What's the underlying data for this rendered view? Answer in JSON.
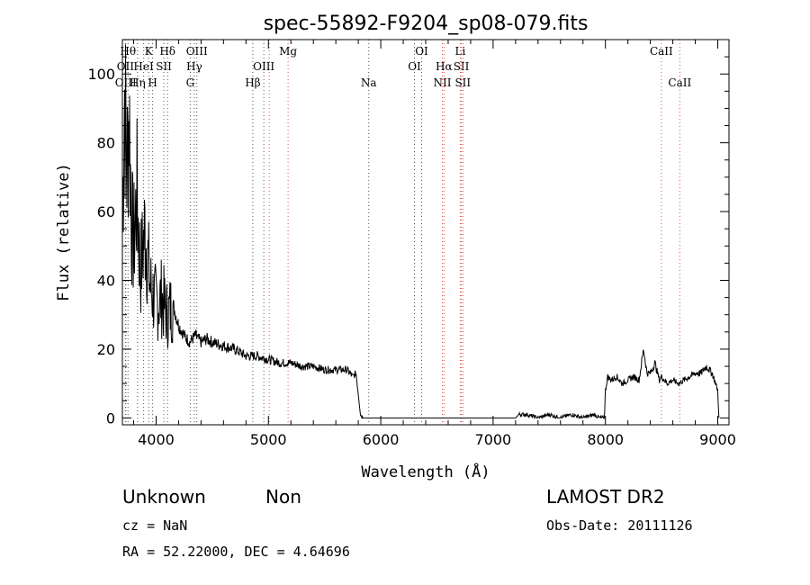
{
  "chart_data": {
    "type": "line",
    "title": "spec-55892-F9204_sp08-079.fits",
    "xlabel": "Wavelength (Å)",
    "ylabel": "Flux (relative)",
    "xlim": [
      3700,
      9100
    ],
    "ylim": [
      -2,
      110
    ],
    "xticks": [
      4000,
      5000,
      6000,
      7000,
      8000,
      9000
    ],
    "yticks": [
      0,
      20,
      40,
      60,
      80,
      100
    ],
    "grid": false,
    "series": [
      {
        "color": "#000000",
        "x": [
          3700,
          3720,
          3740,
          3760,
          3780,
          3800,
          3830,
          3860,
          3900,
          3950,
          4000,
          4050,
          4100,
          4150,
          4200,
          4250,
          4300,
          4350,
          4400,
          4450,
          4500,
          4600,
          4700,
          4800,
          4900,
          5000,
          5100,
          5200,
          5300,
          5400,
          5500,
          5600,
          5700,
          5750,
          5780,
          5800,
          5820,
          5840,
          6000,
          6500,
          7000,
          7200,
          7230,
          7300,
          7400,
          7500,
          7600,
          7700,
          7800,
          7900,
          7950,
          7990,
          8000,
          8020,
          8050,
          8100,
          8150,
          8200,
          8250,
          8300,
          8340,
          8370,
          8400,
          8440,
          8480,
          8500,
          8550,
          8600,
          8650,
          8700,
          8750,
          8800,
          8850,
          8900,
          8950,
          9000,
          9010
        ],
        "y": [
          60,
          95,
          72,
          90,
          58,
          50,
          65,
          42,
          55,
          38,
          33,
          35,
          30,
          33,
          27,
          24,
          22,
          24,
          22,
          23,
          22,
          21,
          20,
          18,
          18,
          17,
          16,
          16,
          15,
          15,
          14,
          14,
          14,
          12,
          13,
          7,
          1,
          0,
          0,
          0,
          0,
          0,
          1,
          1,
          0,
          1,
          0,
          1,
          0,
          1,
          0,
          0,
          8,
          12,
          11,
          12,
          10,
          11,
          12,
          11,
          20,
          13,
          13,
          16,
          11,
          12,
          10,
          11,
          10,
          11,
          12,
          13,
          13,
          15,
          13,
          8,
          0
        ]
      }
    ],
    "line_markers": [
      {
        "x": 3750,
        "labels": [
          "Hθ"
        ],
        "row": 1
      },
      {
        "x": 3727,
        "labels": [
          "OII"
        ],
        "row": 2
      },
      {
        "x": 3730,
        "labels": [
          "OIII"
        ],
        "row": 3
      },
      {
        "x": 3835,
        "labels": [
          "Hη"
        ],
        "row": 3
      },
      {
        "x": 3889,
        "labels": [
          "HeI"
        ],
        "row": 2
      },
      {
        "x": 3934,
        "labels": [
          "K"
        ],
        "row": 1
      },
      {
        "x": 3969,
        "labels": [
          "H"
        ],
        "row": 3
      },
      {
        "x": 4069,
        "labels": [
          "SII"
        ],
        "row": 2
      },
      {
        "x": 4102,
        "labels": [
          "Hδ"
        ],
        "row": 1
      },
      {
        "x": 4304,
        "labels": [
          "G"
        ],
        "row": 3
      },
      {
        "x": 4340,
        "labels": [
          "Hγ"
        ],
        "row": 2
      },
      {
        "x": 4363,
        "labels": [
          "OIII"
        ],
        "row": 1
      },
      {
        "x": 4861,
        "labels": [
          "Hβ"
        ],
        "row": 3
      },
      {
        "x": 4959,
        "labels": [
          "OIII"
        ],
        "row": 2
      },
      {
        "x": 5007,
        "labels": [],
        "row": 0
      },
      {
        "x": 5175,
        "labels": [
          "Mg"
        ],
        "row": 1
      },
      {
        "x": 5893,
        "labels": [
          "Na"
        ],
        "row": 3
      },
      {
        "x": 6300,
        "labels": [
          "OI"
        ],
        "row": 2
      },
      {
        "x": 6364,
        "labels": [
          "OI"
        ],
        "row": 1
      },
      {
        "x": 6548,
        "labels": [
          "NII"
        ],
        "row": 3
      },
      {
        "x": 6563,
        "labels": [
          "Hα"
        ],
        "row": 2
      },
      {
        "x": 6708,
        "labels": [
          "Li"
        ],
        "row": 1
      },
      {
        "x": 6717,
        "labels": [
          "SII"
        ],
        "row": 2
      },
      {
        "x": 6731,
        "labels": [
          "SII"
        ],
        "row": 3
      },
      {
        "x": 8498,
        "labels": [
          "CaII"
        ],
        "row": 1
      },
      {
        "x": 8662,
        "labels": [
          "CaII"
        ],
        "row": 3
      }
    ]
  },
  "info": {
    "class": "Unknown",
    "subclass": "Non",
    "survey": "LAMOST DR2",
    "cz": "cz = NaN",
    "obs_date": "Obs-Date: 20111126",
    "coords": "RA =  52.22000, DEC =   4.64696"
  },
  "colors": {
    "marker_red": "#e05050",
    "marker_black": "#555555"
  }
}
